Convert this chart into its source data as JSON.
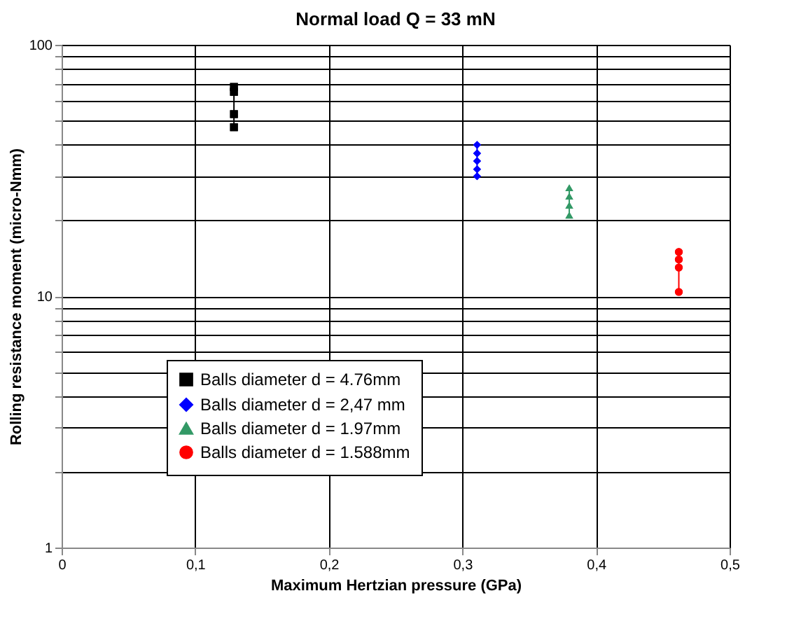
{
  "chart_data": {
    "type": "line",
    "title": "Normal load Q = 33 mN",
    "xlabel": "Maximum Hertzian pressure (GPa)",
    "ylabel": "Rolling resistance moment (micro-Nmm)",
    "series": [
      {
        "name": "Balls diameter d = 4.76mm",
        "color": "#000000",
        "marker": "square",
        "x": [
          0.129,
          0.129,
          0.129,
          0.129
        ],
        "values": [
          68,
          65,
          53,
          47
        ]
      },
      {
        "name": "Balls diameter d = 2,47 mm",
        "color": "#0000ff",
        "marker": "diamond",
        "x": [
          0.311,
          0.311,
          0.311,
          0.311,
          0.311
        ],
        "values": [
          40,
          37,
          34.5,
          32,
          30
        ]
      },
      {
        "name": "Balls diameter d = 1.97mm",
        "color": "#339966",
        "marker": "triangle",
        "x": [
          0.38,
          0.38,
          0.38,
          0.38
        ],
        "values": [
          27,
          25,
          23,
          21
        ]
      },
      {
        "name": "Balls diameter d = 1.588mm",
        "color": "#ff0000",
        "marker": "circle",
        "x": [
          0.462,
          0.462,
          0.462,
          0.462
        ],
        "values": [
          15,
          14,
          13,
          10.4
        ]
      }
    ],
    "xlim": [
      0,
      0.5
    ],
    "xticks": [
      {
        "value": 0,
        "label": "0"
      },
      {
        "value": 0.1,
        "label": "0,1"
      },
      {
        "value": 0.2,
        "label": "0,2"
      },
      {
        "value": 0.3,
        "label": "0,3"
      },
      {
        "value": 0.4,
        "label": "0,4"
      },
      {
        "value": 0.5,
        "label": "0,5"
      }
    ],
    "ylim": [
      1,
      100
    ],
    "yticks": [
      1,
      {
        "value": 2,
        "label": null
      },
      {
        "value": 3,
        "label": null
      },
      {
        "value": 4,
        "label": null
      },
      {
        "value": 5,
        "label": null
      },
      {
        "value": 6,
        "label": null
      },
      {
        "value": 7,
        "label": null
      },
      {
        "value": 8,
        "label": null
      },
      {
        "value": 9,
        "label": null
      },
      10,
      {
        "value": 20,
        "label": null
      },
      {
        "value": 30,
        "label": null
      },
      {
        "value": 40,
        "label": null
      },
      {
        "value": 50,
        "label": null
      },
      {
        "value": 60,
        "label": null
      },
      {
        "value": 70,
        "label": null
      },
      {
        "value": 80,
        "label": null
      },
      {
        "value": 90,
        "label": null
      },
      100
    ],
    "log": "y",
    "grid": true,
    "legend": "bottom left"
  }
}
